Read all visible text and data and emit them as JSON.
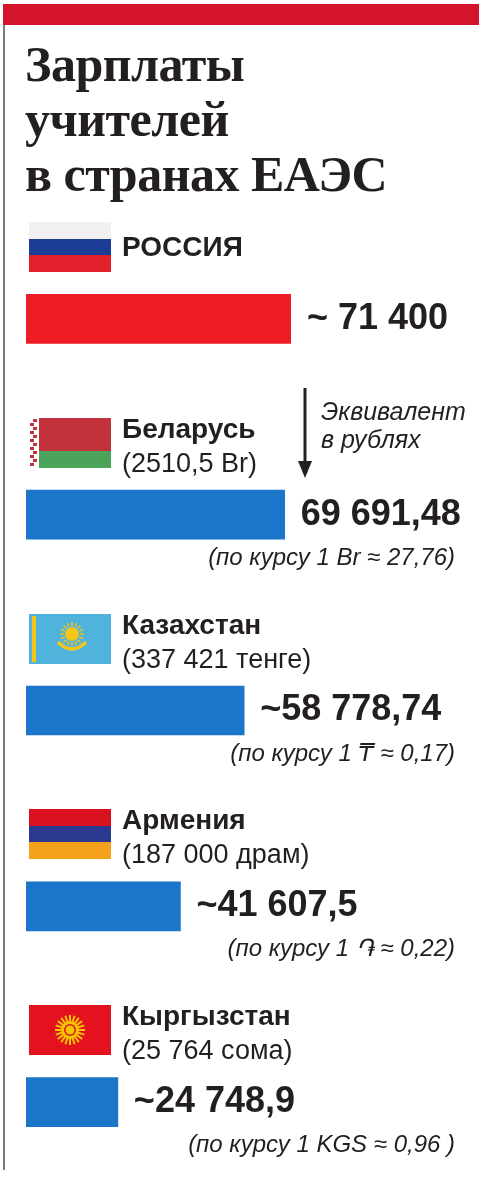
{
  "chart_data": {
    "type": "bar",
    "orientation": "horizontal",
    "title": "Зарплаты\nучителей\nв странах ЕАЭС",
    "categories": [
      "РОССИЯ",
      "Беларусь",
      "Казахстан",
      "Армения",
      "Кыргызстан"
    ],
    "values": [
      71400,
      69691.48,
      58778.74,
      41607.5,
      24748.9
    ],
    "colors": [
      "#ee1c24",
      "#1b75c9",
      "#1b75c9",
      "#1b75c9",
      "#1b75c9"
    ],
    "value_labels": [
      "~ 71 400",
      "69 691,48",
      "~58 778,74",
      "~41 607,5",
      "~24 748,9"
    ],
    "annotations": [
      "Эквивалент в рублях",
      "(2510,5 Br)",
      "(по курсу 1 Br ≈ 27,76)",
      "(337 421 тенге)",
      "(по курсу 1 ₸ ≈ 0,17)",
      "(187 000 драм)",
      "(по курсу 1 ֏ ≈ 0,22)",
      "(25 764 сома)",
      "(по курсу 1 KGS ≈ 0,96 )"
    ],
    "tick_labels": "y"
  }
}
